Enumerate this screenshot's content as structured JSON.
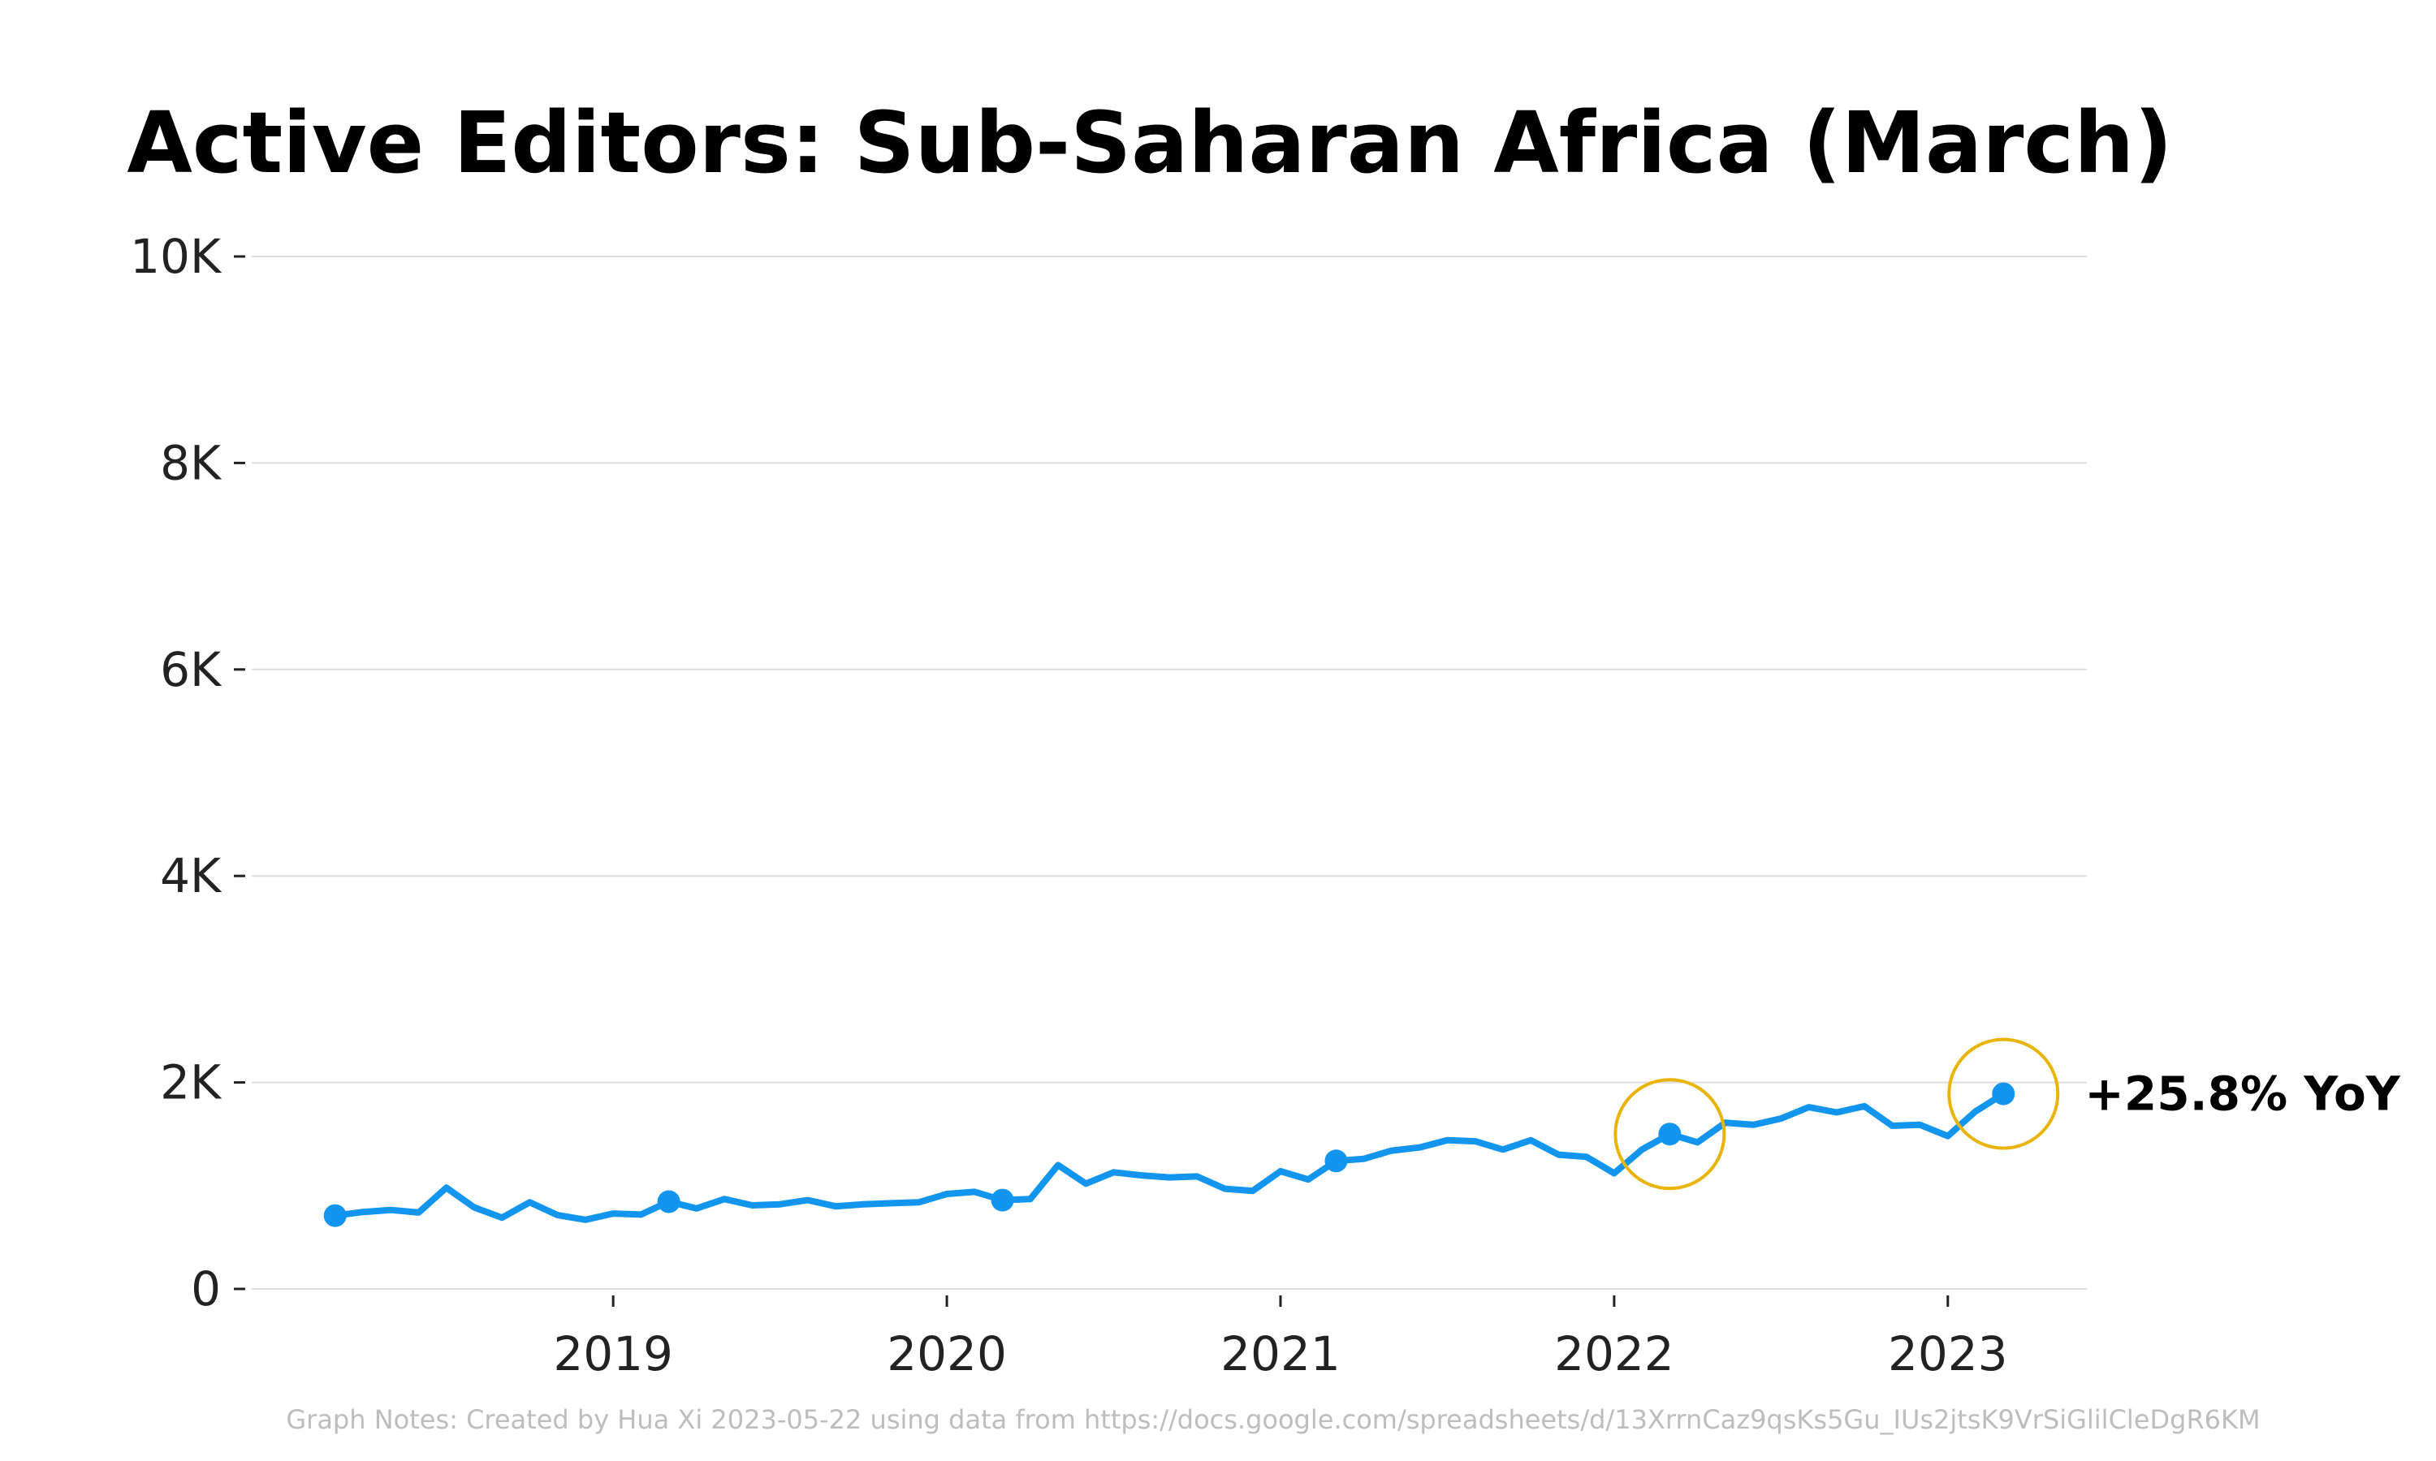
{
  "chart_data": {
    "type": "line",
    "title": "Active Editors: Sub-Saharan Africa (March)",
    "xlabel": "",
    "ylabel": "",
    "y_ticks": [
      {
        "value": 0,
        "label": "0"
      },
      {
        "value": 2000,
        "label": "2K"
      },
      {
        "value": 4000,
        "label": "4K"
      },
      {
        "value": 6000,
        "label": "6K"
      },
      {
        "value": 8000,
        "label": "8K"
      },
      {
        "value": 10000,
        "label": "10K"
      }
    ],
    "x_ticks": [
      "2019-01",
      "2020-01",
      "2021-01",
      "2022-01",
      "2023-01"
    ],
    "x_tick_labels": [
      "2019",
      "2020",
      "2021",
      "2022",
      "2023"
    ],
    "ylim": [
      0,
      10000
    ],
    "xlim": [
      "2017-12",
      "2023-06"
    ],
    "grid": true,
    "series": [
      {
        "color": "#1195ee",
        "x": [
          "2018-03",
          "2018-04",
          "2018-05",
          "2018-06",
          "2018-07",
          "2018-08",
          "2018-09",
          "2018-10",
          "2018-11",
          "2018-12",
          "2019-01",
          "2019-02",
          "2019-03",
          "2019-04",
          "2019-05",
          "2019-06",
          "2019-07",
          "2019-08",
          "2019-09",
          "2019-10",
          "2019-11",
          "2019-12",
          "2020-01",
          "2020-02",
          "2020-03",
          "2020-04",
          "2020-05",
          "2020-06",
          "2020-07",
          "2020-08",
          "2020-09",
          "2020-10",
          "2020-11",
          "2020-12",
          "2021-01",
          "2021-02",
          "2021-03",
          "2021-04",
          "2021-05",
          "2021-06",
          "2021-07",
          "2021-08",
          "2021-09",
          "2021-10",
          "2021-11",
          "2021-12",
          "2022-01",
          "2022-02",
          "2022-03",
          "2022-04",
          "2022-05",
          "2022-06",
          "2022-07",
          "2022-08",
          "2022-09",
          "2022-10",
          "2022-11",
          "2022-12",
          "2023-01",
          "2023-02",
          "2023-03"
        ],
        "values": [
          710,
          745,
          765,
          740,
          980,
          790,
          690,
          840,
          715,
          670,
          730,
          720,
          845,
          780,
          870,
          810,
          820,
          860,
          800,
          820,
          830,
          840,
          920,
          940,
          860,
          870,
          1200,
          1020,
          1130,
          1100,
          1080,
          1090,
          970,
          950,
          1140,
          1060,
          1240,
          1260,
          1340,
          1370,
          1440,
          1430,
          1350,
          1440,
          1300,
          1280,
          1120,
          1350,
          1500,
          1420,
          1610,
          1590,
          1650,
          1760,
          1710,
          1770,
          1580,
          1590,
          1480,
          1720,
          1890
        ]
      }
    ],
    "march_markers": [
      "2018-03",
      "2019-03",
      "2020-03",
      "2021-03",
      "2022-03",
      "2023-03"
    ],
    "highlight_circles": [
      "2022-03",
      "2023-03"
    ],
    "highlight_color": "#eab308",
    "annotation": {
      "text": "+25.8% YoY",
      "at": "2023-03"
    },
    "notes": "Graph Notes: Created by Hua Xi 2023-05-22 using data from https://docs.google.com/spreadsheets/d/13XrrnCaz9qsKs5Gu_IUs2jtsK9VrSiGlilCleDgR6KM"
  }
}
